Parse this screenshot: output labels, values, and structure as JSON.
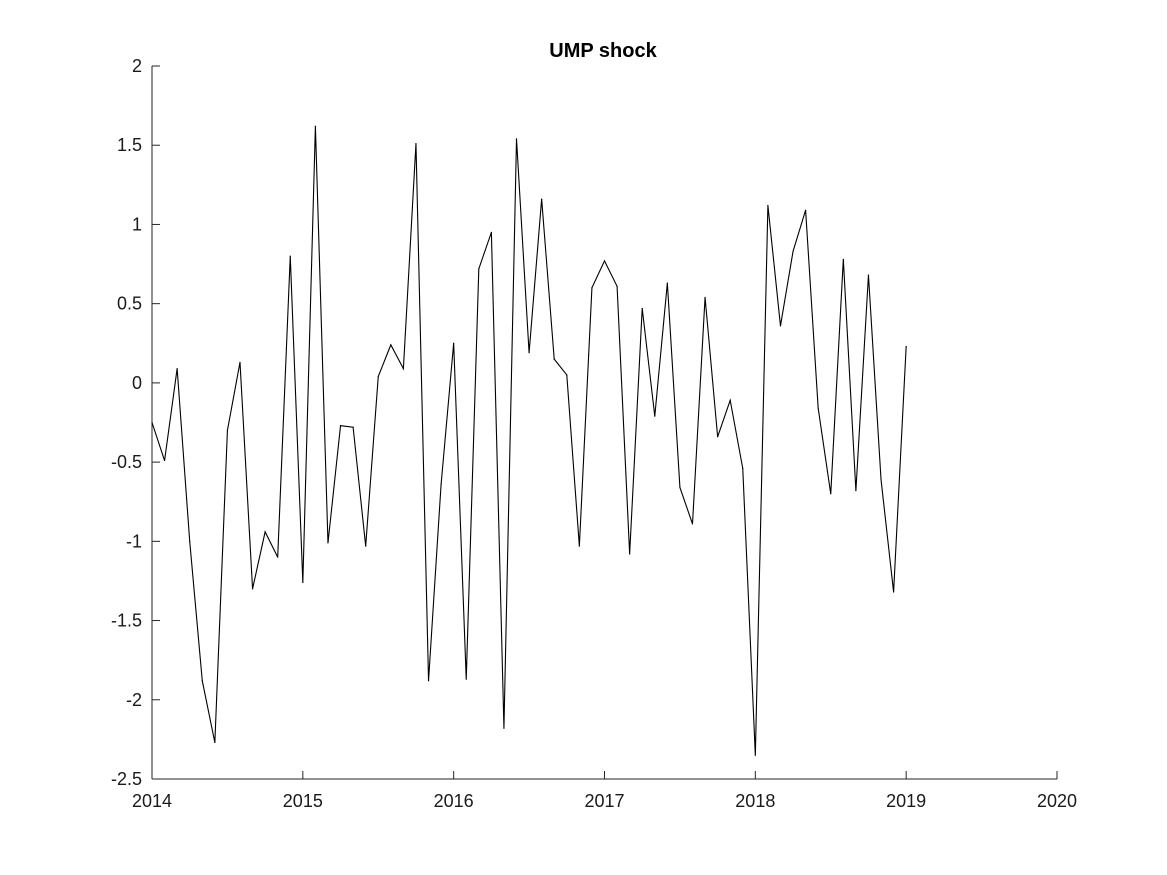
{
  "chart_data": {
    "type": "line",
    "title": "UMP shock",
    "xlabel": "",
    "ylabel": "",
    "xlim": [
      "2014-01",
      "2020-01"
    ],
    "ylim": [
      -2.5,
      2
    ],
    "x_ticks": [
      "2014",
      "2015",
      "2016",
      "2017",
      "2018",
      "2019",
      "2020"
    ],
    "y_ticks": [
      "-2.5",
      "-2",
      "-1.5",
      "-1",
      "-0.5",
      "0",
      "0.5",
      "1",
      "1.5",
      "2"
    ],
    "grid": false,
    "line_color": "#000000",
    "series": [
      {
        "x": [
          "2014-01",
          "2014-02",
          "2014-03",
          "2014-04",
          "2014-05",
          "2014-06",
          "2014-07",
          "2014-08",
          "2014-09",
          "2014-10",
          "2014-11",
          "2014-12",
          "2015-01",
          "2015-02",
          "2015-03",
          "2015-04",
          "2015-05",
          "2015-06",
          "2015-07",
          "2015-08",
          "2015-09",
          "2015-10",
          "2015-11",
          "2015-12",
          "2016-01",
          "2016-02",
          "2016-03",
          "2016-04",
          "2016-05",
          "2016-06",
          "2016-07",
          "2016-08",
          "2016-09",
          "2016-10",
          "2016-11",
          "2016-12",
          "2017-01",
          "2017-02",
          "2017-03",
          "2017-04",
          "2017-05",
          "2017-06",
          "2017-07",
          "2017-08",
          "2017-09",
          "2017-10",
          "2017-11",
          "2017-12",
          "2018-01",
          "2018-02",
          "2018-03",
          "2018-04",
          "2018-05",
          "2018-06",
          "2018-07",
          "2018-08",
          "2018-09",
          "2018-10",
          "2018-11",
          "2018-12",
          "2019-01"
        ],
        "values": [
          -0.25,
          -0.49,
          0.09,
          -1.0,
          -1.88,
          -2.27,
          -0.3,
          0.13,
          -1.3,
          -0.94,
          -1.1,
          0.8,
          -1.26,
          1.62,
          -1.01,
          -0.27,
          -0.28,
          -1.03,
          0.04,
          0.24,
          0.09,
          1.51,
          -1.88,
          -0.64,
          0.25,
          -1.87,
          0.72,
          0.95,
          -2.18,
          1.54,
          0.19,
          1.16,
          0.15,
          0.05,
          -1.03,
          0.6,
          0.77,
          0.61,
          -1.08,
          0.47,
          -0.21,
          0.63,
          -0.66,
          -0.89,
          0.54,
          -0.34,
          -0.11,
          -0.54,
          -2.35,
          1.12,
          0.36,
          0.83,
          1.09,
          -0.16,
          -0.7,
          0.78,
          -0.68,
          0.68,
          -0.61,
          -1.32,
          0.23
        ]
      }
    ]
  }
}
